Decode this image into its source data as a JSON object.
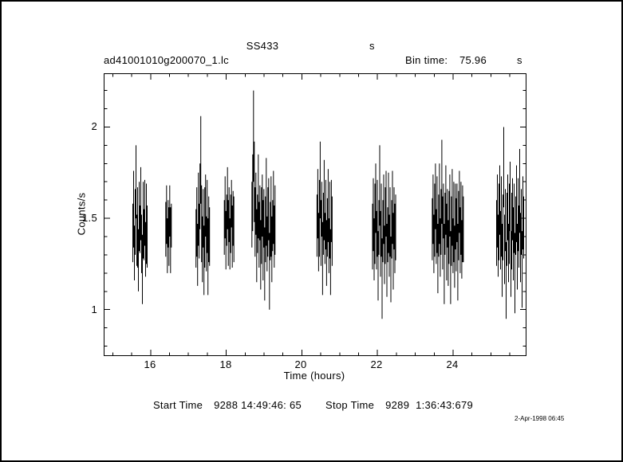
{
  "header": {
    "title": "SS433",
    "title_unit": "s",
    "filename": "ad41001010g200070_1.lc",
    "bin_time_label": "Bin time:",
    "bin_time_value": "75.96",
    "bin_time_unit": "s"
  },
  "footer": {
    "start_label": "Start Time",
    "start_value": "9288 14:49:46: 65",
    "stop_label": "Stop Time",
    "stop_value": "9289  1:36:43:679",
    "timestamp": "2-Apr-1998 06:45"
  },
  "chart_data": {
    "type": "scatter",
    "title": "SS433",
    "xlabel": "Time (hours)",
    "ylabel": "Counts/s",
    "xlim": [
      14.78,
      25.92
    ],
    "ylim": [
      0.75,
      2.29
    ],
    "xticks": [
      16,
      18,
      20,
      22,
      24
    ],
    "xtick_labels": [
      "16",
      "18",
      "20",
      "22",
      "24"
    ],
    "yticks": [
      1,
      1.5,
      2
    ],
    "ytick_labels": [
      "1",
      "1.5",
      "2"
    ],
    "minor_x_step": 0.5,
    "minor_y_step": 0.1,
    "grid": false,
    "error_bars": true,
    "marker": "none",
    "color": "#000000",
    "bin_time_s": 75.96,
    "dt_hours": 0.0211,
    "clusters": [
      {
        "t0": 15.53,
        "points": [
          [
            1.42,
            0.16
          ],
          [
            1.55,
            0.21
          ],
          [
            1.31,
            0.15
          ],
          [
            1.48,
            0.18
          ],
          [
            1.7,
            0.2
          ],
          [
            1.38,
            0.14
          ],
          [
            1.45,
            0.22
          ],
          [
            1.27,
            0.17
          ],
          [
            1.51,
            0.19
          ],
          [
            1.44,
            0.13
          ],
          [
            1.58,
            0.2
          ],
          [
            1.36,
            0.16
          ],
          [
            1.22,
            0.19
          ],
          [
            1.49,
            0.21
          ],
          [
            1.41,
            0.14
          ],
          [
            1.53,
            0.18
          ],
          [
            1.33,
            0.15
          ],
          [
            1.47,
            0.22
          ],
          [
            1.4,
            0.17
          ]
        ]
      },
      {
        "t0": 16.4,
        "points": [
          [
            1.44,
            0.15
          ],
          [
            1.52,
            0.16
          ],
          [
            1.35,
            0.15
          ],
          [
            1.47,
            0.13
          ],
          [
            1.4,
            0.16
          ],
          [
            1.54,
            0.14
          ],
          [
            1.38,
            0.18
          ],
          [
            1.46,
            0.12
          ]
        ]
      },
      {
        "t0": 17.2,
        "points": [
          [
            1.39,
            0.16
          ],
          [
            1.48,
            0.19
          ],
          [
            1.3,
            0.17
          ],
          [
            1.55,
            0.2
          ],
          [
            1.43,
            0.15
          ],
          [
            1.62,
            0.18
          ],
          [
            1.82,
            0.24
          ],
          [
            1.47,
            0.21
          ],
          [
            1.33,
            0.18
          ],
          [
            1.5,
            0.16
          ],
          [
            1.27,
            0.19
          ],
          [
            1.45,
            0.22
          ],
          [
            1.57,
            0.17
          ],
          [
            1.36,
            0.15
          ],
          [
            1.51,
            0.2
          ],
          [
            1.29,
            0.21
          ],
          [
            1.44,
            0.18
          ],
          [
            1.4,
            0.16
          ]
        ]
      },
      {
        "t0": 17.95,
        "points": [
          [
            1.45,
            0.15
          ],
          [
            1.56,
            0.17
          ],
          [
            1.38,
            0.16
          ],
          [
            1.49,
            0.14
          ],
          [
            1.61,
            0.17
          ],
          [
            1.42,
            0.18
          ],
          [
            1.52,
            0.15
          ],
          [
            1.36,
            0.14
          ],
          [
            1.47,
            0.16
          ],
          [
            1.58,
            0.13
          ],
          [
            1.4,
            0.17
          ],
          [
            1.5,
            0.15
          ],
          [
            1.44,
            0.18
          ]
        ]
      },
      {
        "t0": 18.68,
        "points": [
          [
            1.52,
            0.18
          ],
          [
            1.64,
            0.21
          ],
          [
            1.95,
            0.25
          ],
          [
            1.7,
            0.22
          ],
          [
            1.48,
            0.19
          ],
          [
            1.58,
            0.17
          ],
          [
            1.35,
            0.2
          ],
          [
            1.47,
            0.16
          ],
          [
            1.62,
            0.23
          ],
          [
            1.41,
            0.18
          ],
          [
            1.53,
            0.15
          ],
          [
            1.3,
            0.19
          ],
          [
            1.46,
            0.21
          ],
          [
            1.57,
            0.17
          ],
          [
            1.38,
            0.22
          ],
          [
            1.5,
            0.16
          ],
          [
            1.25,
            0.2
          ],
          [
            1.44,
            0.18
          ],
          [
            1.59,
            0.24
          ],
          [
            1.36,
            0.15
          ],
          [
            1.48,
            0.19
          ],
          [
            1.55,
            0.17
          ],
          [
            1.21,
            0.21
          ],
          [
            1.43,
            0.16
          ],
          [
            1.51,
            0.22
          ],
          [
            1.33,
            0.18
          ],
          [
            1.46,
            0.14
          ],
          [
            1.56,
            0.2
          ],
          [
            1.4,
            0.17
          ],
          [
            1.49,
            0.19
          ]
        ]
      },
      {
        "t0": 20.4,
        "points": [
          [
            1.46,
            0.17
          ],
          [
            1.58,
            0.19
          ],
          [
            1.37,
            0.16
          ],
          [
            1.5,
            0.21
          ],
          [
            1.71,
            0.21
          ],
          [
            1.42,
            0.18
          ],
          [
            1.55,
            0.15
          ],
          [
            1.28,
            0.2
          ],
          [
            1.47,
            0.17
          ],
          [
            1.6,
            0.22
          ],
          [
            1.39,
            0.14
          ],
          [
            1.52,
            0.19
          ],
          [
            1.31,
            0.18
          ],
          [
            1.45,
            0.16
          ],
          [
            1.57,
            0.2
          ],
          [
            1.35,
            0.15
          ],
          [
            1.49,
            0.21
          ],
          [
            1.26,
            0.18
          ],
          [
            1.54,
            0.17
          ],
          [
            1.43,
            0.19
          ]
        ]
      },
      {
        "t0": 21.87,
        "points": [
          [
            1.4,
            0.18
          ],
          [
            1.52,
            0.2
          ],
          [
            1.33,
            0.17
          ],
          [
            1.47,
            0.22
          ],
          [
            1.61,
            0.19
          ],
          [
            1.38,
            0.16
          ],
          [
            1.5,
            0.21
          ],
          [
            1.24,
            0.19
          ],
          [
            1.45,
            0.15
          ],
          [
            1.68,
            0.22
          ],
          [
            1.36,
            0.18
          ],
          [
            1.49,
            0.2
          ],
          [
            1.17,
            0.22
          ],
          [
            1.43,
            0.17
          ],
          [
            1.55,
            0.19
          ],
          [
            1.3,
            0.16
          ],
          [
            1.46,
            0.21
          ],
          [
            1.58,
            0.18
          ],
          [
            1.27,
            0.2
          ],
          [
            1.41,
            0.15
          ],
          [
            1.53,
            0.22
          ],
          [
            1.35,
            0.17
          ],
          [
            1.48,
            0.19
          ],
          [
            1.22,
            0.18
          ],
          [
            1.44,
            0.16
          ],
          [
            1.56,
            0.2
          ],
          [
            1.32,
            0.21
          ],
          [
            1.5,
            0.17
          ],
          [
            1.39,
            0.19
          ],
          [
            1.45,
            0.18
          ]
        ]
      },
      {
        "t0": 23.45,
        "points": [
          [
            1.44,
            0.17
          ],
          [
            1.55,
            0.19
          ],
          [
            1.36,
            0.16
          ],
          [
            1.49,
            0.2
          ],
          [
            1.62,
            0.18
          ],
          [
            1.4,
            0.15
          ],
          [
            1.52,
            0.21
          ],
          [
            1.28,
            0.19
          ],
          [
            1.46,
            0.17
          ],
          [
            1.58,
            0.22
          ],
          [
            1.34,
            0.16
          ],
          [
            1.48,
            0.18
          ],
          [
            1.7,
            0.23
          ],
          [
            1.42,
            0.2
          ],
          [
            1.54,
            0.15
          ],
          [
            1.25,
            0.22
          ],
          [
            1.47,
            0.17
          ],
          [
            1.6,
            0.19
          ],
          [
            1.37,
            0.21
          ],
          [
            1.5,
            0.16
          ],
          [
            1.31,
            0.18
          ],
          [
            1.45,
            0.2
          ],
          [
            1.57,
            0.17
          ],
          [
            1.23,
            0.2
          ],
          [
            1.43,
            0.19
          ],
          [
            1.56,
            0.21
          ],
          [
            1.35,
            0.15
          ],
          [
            1.48,
            0.22
          ],
          [
            1.29,
            0.17
          ],
          [
            1.51,
            0.18
          ],
          [
            1.41,
            0.2
          ],
          [
            1.53,
            0.16
          ],
          [
            1.26,
            0.21
          ],
          [
            1.46,
            0.19
          ],
          [
            1.59,
            0.17
          ],
          [
            1.38,
            0.18
          ],
          [
            1.5,
            0.2
          ],
          [
            1.33,
            0.16
          ],
          [
            1.47,
            0.21
          ],
          [
            1.44,
            0.18
          ]
        ]
      },
      {
        "t0": 25.15,
        "points": [
          [
            1.42,
            0.18
          ],
          [
            1.54,
            0.2
          ],
          [
            1.35,
            0.17
          ],
          [
            1.48,
            0.21
          ],
          [
            1.6,
            0.19
          ],
          [
            1.38,
            0.16
          ],
          [
            1.51,
            0.22
          ],
          [
            1.27,
            0.2
          ],
          [
            1.45,
            0.18
          ],
          [
            1.78,
            0.22
          ],
          [
            1.33,
            0.19
          ],
          [
            1.49,
            0.17
          ],
          [
            1.16,
            0.21
          ],
          [
            1.44,
            0.2
          ],
          [
            1.56,
            0.18
          ],
          [
            1.31,
            0.16
          ],
          [
            1.47,
            0.22
          ],
          [
            1.62,
            0.19
          ],
          [
            1.25,
            0.18
          ],
          [
            1.43,
            0.21
          ],
          [
            1.55,
            0.17
          ],
          [
            1.36,
            0.2
          ],
          [
            1.5,
            0.19
          ],
          [
            1.2,
            0.22
          ],
          [
            1.46,
            0.16
          ],
          [
            1.58,
            0.21
          ],
          [
            1.29,
            0.18
          ],
          [
            1.52,
            0.2
          ],
          [
            1.4,
            0.17
          ],
          [
            1.65,
            0.23
          ],
          [
            1.34,
            0.19
          ],
          [
            1.48,
            0.18
          ],
          [
            1.22,
            0.21
          ],
          [
            1.53,
            0.2
          ],
          [
            1.45,
            0.17
          ]
        ]
      }
    ]
  }
}
